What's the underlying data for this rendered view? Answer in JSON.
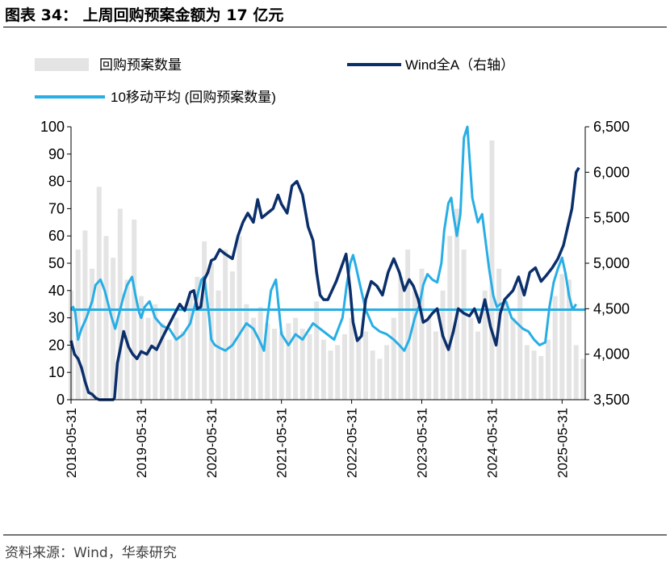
{
  "title": "图表 34：  上周回购预案金额为 17 亿元",
  "source": "资料来源：Wind，华泰研究",
  "chart_data": {
    "type": "bar+line",
    "title": "上周回购预案金额为 17 亿元",
    "legend": {
      "bar": "回购预案数量",
      "wind": "Wind全A（右轴）",
      "ma": "10移动平均 (回购预案数量)"
    },
    "colors": {
      "bar": "#e4e4e4",
      "wind": "#0b2f6b",
      "ma": "#27aee5",
      "axis": "#000000"
    },
    "x_range": [
      "2018-05-31",
      "2025-09-30"
    ],
    "x_ticks": [
      "2018-05-31",
      "2019-05-31",
      "2020-05-31",
      "2021-05-31",
      "2022-05-31",
      "2023-05-31",
      "2024-05-31",
      "2025-05-31"
    ],
    "y_left": {
      "min": 0,
      "max": 100,
      "ticks": [
        "0",
        "10",
        "20",
        "30",
        "40",
        "50",
        "60",
        "70",
        "80",
        "90",
        "100"
      ]
    },
    "y_right": {
      "min": 3500,
      "max": 6500,
      "ticks": [
        "3,500",
        "4,000",
        "4,500",
        "5,000",
        "5,500",
        "6,000",
        "6,500"
      ]
    },
    "reference_line": {
      "value": 33,
      "axis": "left"
    },
    "series_bar": {
      "name": "回购预案数量",
      "x": [
        0.0,
        0.1,
        0.2,
        0.3,
        0.4,
        0.5,
        0.6,
        0.7,
        0.8,
        0.9,
        1.0,
        1.1,
        1.2,
        1.3,
        1.4,
        1.5,
        1.6,
        1.7,
        1.8,
        1.9,
        2.0,
        2.1,
        2.2,
        2.3,
        2.4,
        2.5,
        2.6,
        2.7,
        2.8,
        2.9,
        3.0,
        3.1,
        3.2,
        3.3,
        3.4,
        3.5,
        3.6,
        3.7,
        3.8,
        3.9,
        4.0,
        4.1,
        4.2,
        4.3,
        4.4,
        4.5,
        4.6,
        4.7,
        4.8,
        4.9,
        5.0,
        5.1,
        5.2,
        5.3,
        5.4,
        5.5,
        5.6,
        5.7,
        5.8,
        5.9,
        6.0,
        6.1,
        6.2,
        6.3,
        6.4,
        6.5,
        6.6,
        6.7,
        6.8,
        6.9,
        7.0,
        7.1,
        7.2,
        7.3
      ],
      "values": [
        40,
        55,
        62,
        48,
        78,
        60,
        52,
        70,
        44,
        66,
        38,
        30,
        35,
        28,
        22,
        30,
        25,
        38,
        45,
        58,
        50,
        40,
        55,
        47,
        60,
        35,
        30,
        34,
        28,
        26,
        25,
        28,
        30,
        26,
        24,
        36,
        22,
        18,
        20,
        24,
        30,
        22,
        25,
        18,
        15,
        20,
        30,
        45,
        55,
        40,
        48,
        30,
        25,
        40,
        60,
        70,
        55,
        30,
        25,
        40,
        95,
        48,
        36,
        30,
        42,
        20,
        18,
        16,
        22,
        38,
        46,
        44,
        20,
        15
      ]
    },
    "series_ma": {
      "name": "10移动平均 (回购预案数量)",
      "x": [
        0.0,
        0.03,
        0.06,
        0.1,
        0.15,
        0.22,
        0.3,
        0.35,
        0.42,
        0.48,
        0.52,
        0.58,
        0.63,
        0.7,
        0.75,
        0.8,
        0.87,
        0.92,
        0.97,
        1.0,
        1.05,
        1.12,
        1.2,
        1.3,
        1.4,
        1.5,
        1.6,
        1.7,
        1.8,
        1.86,
        1.9,
        1.97,
        2.0,
        2.05,
        2.12,
        2.2,
        2.3,
        2.4,
        2.5,
        2.6,
        2.68,
        2.75,
        2.8,
        2.85,
        2.92,
        3.0,
        3.1,
        3.2,
        3.3,
        3.45,
        3.6,
        3.75,
        3.87,
        3.93,
        3.98,
        4.02,
        4.06,
        4.12,
        4.2,
        4.3,
        4.4,
        4.5,
        4.6,
        4.68,
        4.75,
        4.82,
        4.9,
        4.97,
        5.02,
        5.08,
        5.15,
        5.22,
        5.28,
        5.32,
        5.38,
        5.42,
        5.45,
        5.5,
        5.55,
        5.6,
        5.65,
        5.72,
        5.8,
        5.86,
        5.9,
        5.96,
        6.02,
        6.07,
        6.12,
        6.2,
        6.28,
        6.36,
        6.44,
        6.52,
        6.6,
        6.68,
        6.76,
        6.82,
        6.88,
        6.94,
        7.0,
        7.05,
        7.1,
        7.15,
        7.2
      ],
      "values": [
        33,
        34,
        32,
        22,
        26,
        30,
        36,
        42,
        44,
        40,
        36,
        30,
        26,
        33,
        38,
        42,
        45,
        38,
        32,
        30,
        34,
        36,
        30,
        27,
        26,
        22,
        24,
        28,
        38,
        44,
        45,
        30,
        22,
        20,
        19,
        18,
        20,
        24,
        28,
        26,
        22,
        18,
        30,
        40,
        44,
        24,
        20,
        24,
        22,
        28,
        25,
        22,
        30,
        42,
        50,
        53,
        49,
        42,
        33,
        27,
        25,
        24,
        22,
        20,
        18,
        22,
        30,
        35,
        42,
        46,
        44,
        43,
        50,
        62,
        72,
        74,
        68,
        60,
        68,
        96,
        100,
        74,
        65,
        68,
        60,
        48,
        38,
        34,
        35,
        36,
        30,
        28,
        26,
        25,
        22,
        20,
        21,
        34,
        43,
        48,
        52,
        46,
        38,
        33,
        35
      ]
    },
    "series_wind": {
      "name": "Wind全A（右轴）",
      "x": [
        0.0,
        0.05,
        0.1,
        0.15,
        0.2,
        0.25,
        0.3,
        0.35,
        0.4,
        0.45,
        0.5,
        0.55,
        0.6,
        0.62,
        0.66,
        0.7,
        0.75,
        0.82,
        0.88,
        0.94,
        1.0,
        1.08,
        1.15,
        1.22,
        1.3,
        1.38,
        1.46,
        1.55,
        1.62,
        1.7,
        1.75,
        1.8,
        1.85,
        1.9,
        1.95,
        2.0,
        2.05,
        2.12,
        2.2,
        2.3,
        2.38,
        2.45,
        2.52,
        2.6,
        2.66,
        2.72,
        2.8,
        2.88,
        2.95,
        3.0,
        3.08,
        3.15,
        3.22,
        3.3,
        3.38,
        3.45,
        3.5,
        3.55,
        3.6,
        3.66,
        3.72,
        3.78,
        3.85,
        3.92,
        3.98,
        4.02,
        4.08,
        4.14,
        4.2,
        4.28,
        4.36,
        4.44,
        4.52,
        4.6,
        4.68,
        4.75,
        4.82,
        4.88,
        4.95,
        5.02,
        5.08,
        5.15,
        5.22,
        5.3,
        5.38,
        5.45,
        5.52,
        5.6,
        5.68,
        5.75,
        5.82,
        5.9,
        5.98,
        6.06,
        6.12,
        6.18,
        6.24,
        6.3,
        6.38,
        6.46,
        6.54,
        6.62,
        6.7,
        6.78,
        6.86,
        6.94,
        7.02,
        7.08,
        7.14,
        7.2,
        7.24
      ],
      "values": [
        4150,
        4000,
        3950,
        3850,
        3700,
        3580,
        3560,
        3520,
        3480,
        3430,
        3400,
        3380,
        3390,
        3520,
        3900,
        4050,
        4250,
        4080,
        4000,
        3950,
        4030,
        4000,
        4090,
        4050,
        4180,
        4300,
        4420,
        4550,
        4480,
        4680,
        4700,
        4500,
        4520,
        4820,
        4900,
        5030,
        5050,
        5150,
        5100,
        5050,
        5300,
        5450,
        5550,
        5450,
        5700,
        5500,
        5550,
        5600,
        5750,
        5650,
        5550,
        5850,
        5900,
        5750,
        5400,
        5250,
        4900,
        4650,
        4600,
        4600,
        4700,
        4800,
        4950,
        5100,
        4700,
        4350,
        4150,
        4200,
        4600,
        4800,
        4750,
        4650,
        4900,
        5050,
        4900,
        4700,
        4820,
        4750,
        4600,
        4350,
        4380,
        4450,
        4500,
        4200,
        4050,
        4250,
        4500,
        4450,
        4420,
        4500,
        4350,
        4600,
        4300,
        4100,
        4450,
        4600,
        4650,
        4700,
        4850,
        4650,
        4900,
        4950,
        4800,
        4870,
        4950,
        5050,
        5200,
        5400,
        5600,
        6000,
        6050
      ]
    }
  }
}
